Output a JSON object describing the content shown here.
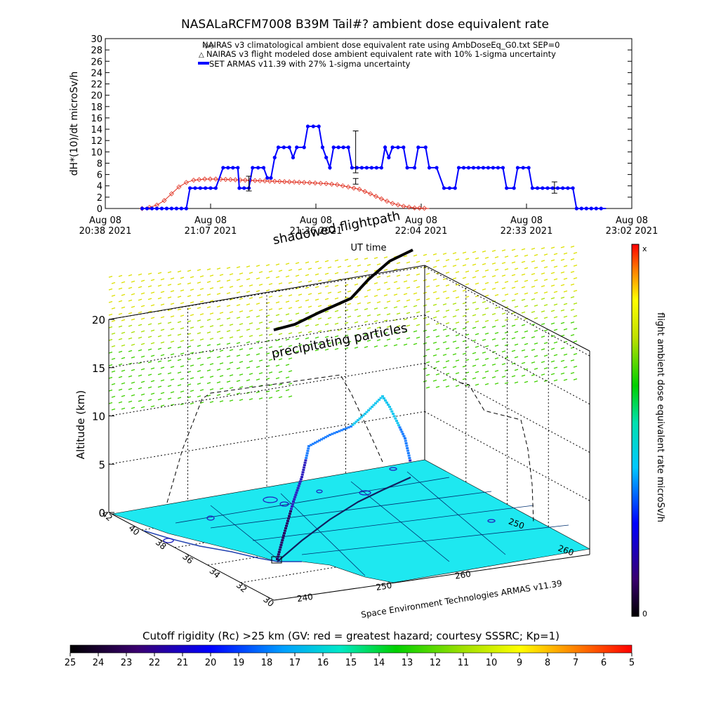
{
  "chart_data": [
    {
      "type": "line",
      "title": "NASALaRCFM7008  B39M Tail#? ambient dose equivalent rate",
      "ylabel": "dH*(10)/dt microSv/h",
      "xlabel": "UT time",
      "ylim": [
        0,
        30
      ],
      "yticks": [
        0,
        2,
        4,
        6,
        8,
        10,
        12,
        14,
        16,
        18,
        20,
        22,
        24,
        26,
        28,
        30
      ],
      "x_ticks": [
        {
          "line1": "Aug 08",
          "line2": "20:38 2021"
        },
        {
          "line1": "Aug 08",
          "line2": "21:07 2021"
        },
        {
          "line1": "Aug 08",
          "line2": "21:36 2021"
        },
        {
          "line1": "Aug 08",
          "line2": "22:04 2021"
        },
        {
          "line1": "Aug 08",
          "line2": "22:33 2021"
        },
        {
          "line1": "Aug 08",
          "line2": "23:02 2021"
        }
      ],
      "time_range_min": [
        "20:38",
        "23:02"
      ],
      "legend": [
        "NAIRAS v3 climatological ambient dose equivalent rate using AmbDoseEq_G0.txt SEP=0",
        "NAIRAS v3 flight modeled dose ambient equivalent rate with 10% 1-sigma uncertainty",
        "SET ARMAS v11.39 with 27% 1-sigma uncertainty"
      ],
      "legend_position": "top",
      "series": [
        {
          "color": "#e03020",
          "marker": "diamond",
          "points": [
            [
              21.0,
              0
            ],
            [
              21.1,
              0.2
            ],
            [
              21.2,
              0.6
            ],
            [
              21.3,
              1.4
            ],
            [
              21.4,
              2.6
            ],
            [
              21.5,
              3.8
            ],
            [
              21.6,
              4.6
            ],
            [
              21.7,
              5.0
            ],
            [
              21.85,
              5.2
            ],
            [
              22.0,
              5.2
            ],
            [
              22.2,
              5.1
            ],
            [
              22.4,
              5.0
            ],
            [
              22.6,
              4.9
            ],
            [
              22.8,
              4.8
            ],
            [
              23.0,
              4.7
            ],
            [
              23.2,
              4.6
            ],
            [
              23.35,
              4.5
            ],
            [
              23.5,
              4.4
            ],
            [
              23.65,
              4.2
            ],
            [
              23.8,
              3.8
            ],
            [
              23.95,
              3.4
            ],
            [
              24.1,
              2.6
            ],
            [
              24.25,
              1.7
            ],
            [
              24.4,
              0.9
            ],
            [
              24.55,
              0.4
            ],
            [
              24.7,
              0.1
            ],
            [
              24.9,
              0
            ]
          ]
        },
        {
          "color": "#0000ff",
          "marker": "dot",
          "points": [
            [
              21.0,
              0
            ],
            [
              21.6,
              0
            ],
            [
              21.65,
              3.6
            ],
            [
              22.0,
              3.6
            ],
            [
              22.1,
              7.2
            ],
            [
              22.3,
              7.2
            ],
            [
              22.32,
              3.6
            ],
            [
              22.45,
              3.6
            ],
            [
              22.5,
              7.2
            ],
            [
              22.65,
              7.2
            ],
            [
              22.7,
              5.4
            ],
            [
              22.75,
              5.4
            ],
            [
              22.8,
              9.0
            ],
            [
              22.85,
              10.8
            ],
            [
              23.0,
              10.8
            ],
            [
              23.05,
              9.0
            ],
            [
              23.1,
              10.8
            ],
            [
              23.2,
              10.8
            ],
            [
              23.25,
              14.5
            ],
            [
              23.4,
              14.5
            ],
            [
              23.45,
              10.8
            ],
            [
              23.5,
              9.0
            ],
            [
              23.55,
              7.2
            ],
            [
              23.6,
              10.8
            ],
            [
              23.8,
              10.8
            ],
            [
              23.85,
              7.2
            ],
            [
              24.25,
              7.2
            ],
            [
              24.3,
              10.8
            ],
            [
              24.35,
              9.0
            ],
            [
              24.4,
              10.8
            ],
            [
              24.55,
              10.8
            ],
            [
              24.6,
              7.2
            ],
            [
              24.7,
              7.2
            ],
            [
              24.75,
              10.8
            ],
            [
              24.85,
              10.8
            ],
            [
              24.9,
              7.2
            ],
            [
              25.0,
              7.2
            ],
            [
              25.1,
              3.6
            ],
            [
              25.25,
              3.6
            ],
            [
              25.3,
              7.2
            ],
            [
              25.9,
              7.2
            ],
            [
              25.95,
              3.6
            ],
            [
              26.05,
              3.6
            ],
            [
              26.1,
              7.2
            ],
            [
              26.25,
              7.2
            ],
            [
              26.3,
              3.6
            ],
            [
              26.85,
              3.6
            ],
            [
              26.9,
              0
            ],
            [
              27.3,
              0
            ]
          ]
        }
      ],
      "error_bars": [
        {
          "x": 22.45,
          "y": 4.4,
          "err": 1.3
        },
        {
          "x": 23.9,
          "y": 10.0,
          "err": 3.7
        },
        {
          "x": 23.9,
          "y": 4.8,
          "err": 0.5
        },
        {
          "x": 26.6,
          "y": 3.7,
          "err": 1.0
        }
      ]
    },
    {
      "type": "scatter",
      "title": "shadowed flightpath",
      "annotation": "precipitating particles",
      "zlabel": "Altitude (km)",
      "zticks": [
        0,
        5,
        10,
        15,
        20
      ],
      "lat_ticks": [
        30,
        32,
        34,
        36,
        38,
        40,
        42
      ],
      "lon_ticks": [
        240,
        250,
        260
      ],
      "lon_ticks_right": [
        250,
        260
      ],
      "credit": "Space Environment Technologies ARMAS v11.39",
      "colorbar_right": {
        "label": "flight ambient dose equivalent rate microSv/h",
        "top": "x",
        "bottom": "0"
      },
      "flight_alt_km": [
        0.3,
        1.5,
        3.2,
        5.0,
        6.6,
        8.2,
        10.2,
        11.6,
        12.2,
        11.0,
        9.0,
        7.2,
        5.4,
        4.5
      ]
    },
    {
      "type": "heatmap",
      "title": "Cutoff rigidity (Rc) >25 km (GV: red = greatest hazard; courtesy SSSRC; Kp=1)",
      "ticks": [
        25,
        24,
        23,
        22,
        21,
        20,
        19,
        18,
        17,
        16,
        15,
        14,
        13,
        12,
        11,
        10,
        9,
        8,
        7,
        6,
        5
      ]
    }
  ]
}
